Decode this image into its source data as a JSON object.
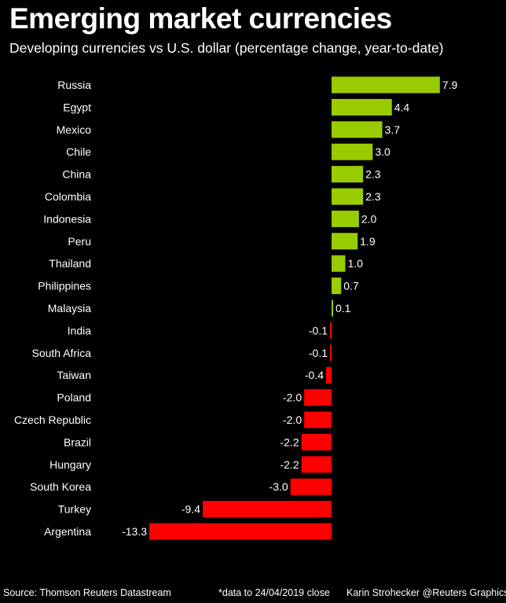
{
  "chart_data": {
    "type": "bar",
    "orientation": "horizontal",
    "title": "Emerging market currencies",
    "subtitle": "Developing currencies vs U.S. dollar (percentage change, year-to-date)",
    "categories": [
      "Russia",
      "Egypt",
      "Mexico",
      "Chile",
      "China",
      "Colombia",
      "Indonesia",
      "Peru",
      "Thailand",
      "Philippines",
      "Malaysia",
      "India",
      "South Africa",
      "Taiwan",
      "Poland",
      "Czech Republic",
      "Brazil",
      "Hungary",
      "South Korea",
      "Turkey",
      "Argentina"
    ],
    "values": [
      7.9,
      4.4,
      3.7,
      3.0,
      2.3,
      2.3,
      2.0,
      1.9,
      1.0,
      0.7,
      0.1,
      -0.1,
      -0.1,
      -0.4,
      -2.0,
      -2.0,
      -2.2,
      -2.2,
      -3.0,
      -9.4,
      -13.3
    ],
    "value_labels": [
      "7.9",
      "4.4",
      "3.7",
      "3.0",
      "2.3",
      "2.3",
      "2.0",
      "1.9",
      "1.0",
      "0.7",
      "0.1",
      "-0.1",
      "-0.1",
      "-0.4",
      "-2.0",
      "-2.0",
      "-2.2",
      "-2.2",
      "-3.0",
      "-9.4",
      "-13.3"
    ],
    "xlim": [
      -13.3,
      7.9
    ],
    "grid": false,
    "colors": {
      "positive": "#99cc00",
      "negative": "#ff0000",
      "background": "#000000",
      "text": "#ffffff"
    }
  },
  "footer": {
    "source": "Source: Thomson Reuters Datastream",
    "note": "*data to 24/04/2019 close",
    "credit": "Karin Strohecker @Reuters Graphics"
  }
}
